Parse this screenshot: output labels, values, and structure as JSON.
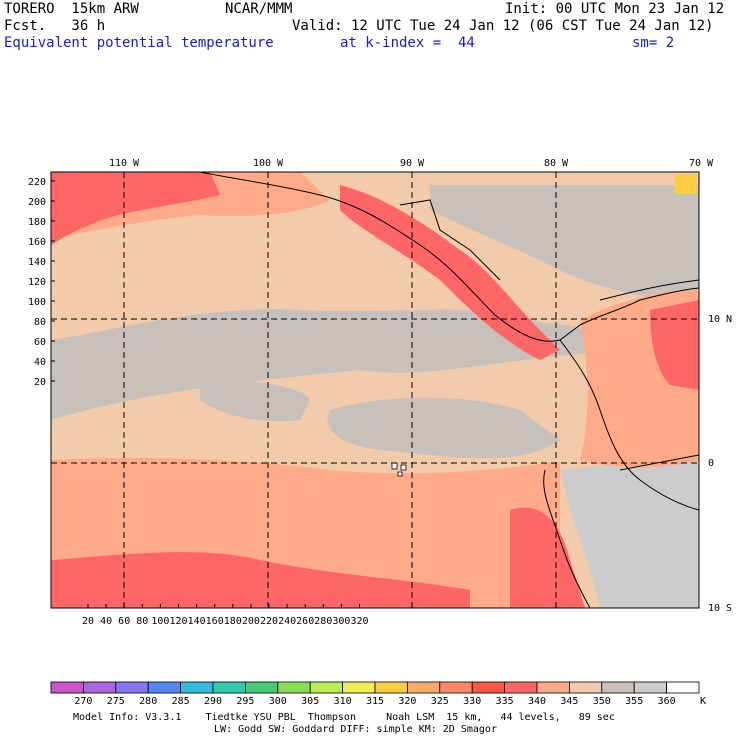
{
  "header": {
    "model": "TORERO  15km ARW",
    "org": "NCAR/MMM",
    "init": "Init: 00 UTC Mon 23 Jan 12",
    "fcst": "Fcst.   36 h",
    "valid": "Valid: 12 UTC Tue 24 Jan 12 (06 CST Tue 24 Jan 12)",
    "field": "Equivalent potential temperature",
    "level": "at k-index =  44",
    "smooth": "sm= 2"
  },
  "map": {
    "lon_labels": [
      "110 W",
      "100 W",
      "90 W",
      "80 W",
      "70 W"
    ],
    "lat_labels": [
      "10 N",
      "0",
      "10 S"
    ],
    "y_ticks": [
      "220",
      "200",
      "180",
      "160",
      "140",
      "120",
      "100",
      "80",
      "60",
      "40",
      "20"
    ],
    "x_ticks": [
      "20",
      "40",
      "60",
      "80",
      "100",
      "120",
      "140",
      "160",
      "180",
      "200",
      "220",
      "240",
      "260",
      "280",
      "300",
      "320"
    ]
  },
  "colorbar": {
    "unit": "K",
    "labels": [
      "270",
      "275",
      "280",
      "285",
      "290",
      "295",
      "300",
      "305",
      "310",
      "315",
      "320",
      "325",
      "330",
      "335",
      "340",
      "345",
      "350",
      "355",
      "360"
    ],
    "colors": [
      "#cc55cc",
      "#aa66dd",
      "#8877ee",
      "#5588ee",
      "#33bbdd",
      "#33ccaa",
      "#44cc77",
      "#88dd55",
      "#bbee55",
      "#eeee55",
      "#ffcc44",
      "#ffaa66",
      "#ff8866",
      "#ff5544",
      "#ff6666",
      "#ffaa88",
      "#f2cbaa",
      "#c8c0ba",
      "#cccccc",
      "#ffffff"
    ]
  },
  "footer": {
    "line1": "Model Info: V3.3.1    Tiedtke YSU PBL  Thompson     Noah LSM  15 km,   44 levels,   89 sec",
    "line2": "LW: Godd SW: Goddard DIFF: simple KM: 2D Smagor"
  }
}
